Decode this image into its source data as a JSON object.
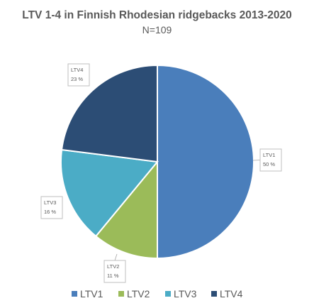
{
  "chart_data": {
    "type": "pie",
    "title": "LTV 1-4 in Finnish Rhodesian ridgebacks 2013-2020",
    "subtitle": "N=109",
    "categories": [
      "LTV1",
      "LTV2",
      "LTV3",
      "LTV4"
    ],
    "values": [
      50,
      11,
      16,
      23
    ],
    "value_labels": [
      "50 %",
      "11 %",
      "16 %",
      "23 %"
    ],
    "colors": [
      "#4a7ebb",
      "#9bbb59",
      "#4bacc6",
      "#2c4d75"
    ],
    "legend": {
      "position": "bottom",
      "entries": [
        "LTV1",
        "LTV2",
        "LTV3",
        "LTV4"
      ]
    }
  }
}
